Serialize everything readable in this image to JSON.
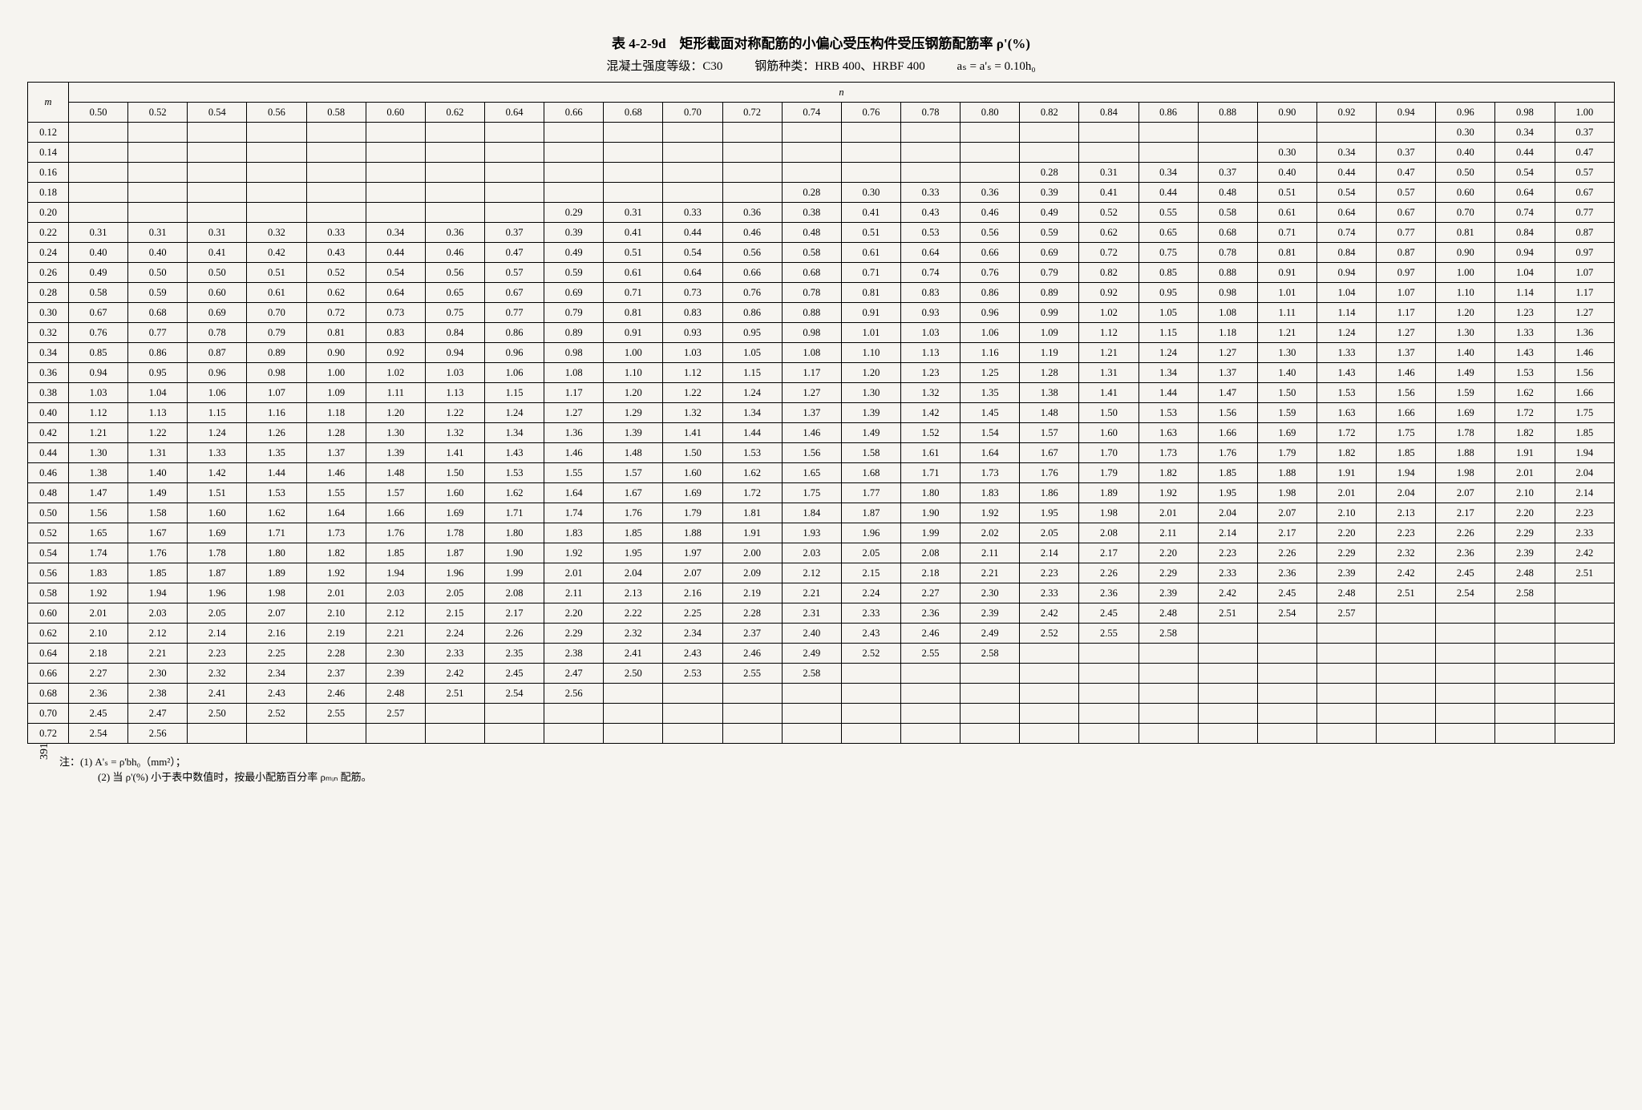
{
  "title": "表 4-2-9d　矩形截面对称配筋的小偏心受压构件受压钢筋配筋率 ρ'(%)",
  "sub_left": "混凝土强度等级：C30",
  "sub_mid": "钢筋种类：HRB 400、HRBF 400",
  "sub_right": "aₛ = a'ₛ = 0.10h₀",
  "m_label": "m",
  "n_label": "n",
  "n_headers": [
    "0.50",
    "0.52",
    "0.54",
    "0.56",
    "0.58",
    "0.60",
    "0.62",
    "0.64",
    "0.66",
    "0.68",
    "0.70",
    "0.72",
    "0.74",
    "0.76",
    "0.78",
    "0.80",
    "0.82",
    "0.84",
    "0.86",
    "0.88",
    "0.90",
    "0.92",
    "0.94",
    "0.96",
    "0.98",
    "1.00"
  ],
  "rows": [
    {
      "m": "0.12",
      "v": [
        "",
        "",
        "",
        "",
        "",
        "",
        "",
        "",
        "",
        "",
        "",
        "",
        "",
        "",
        "",
        "",
        "",
        "",
        "",
        "",
        "",
        "",
        "",
        "0.30",
        "0.34",
        "0.37"
      ]
    },
    {
      "m": "0.14",
      "v": [
        "",
        "",
        "",
        "",
        "",
        "",
        "",
        "",
        "",
        "",
        "",
        "",
        "",
        "",
        "",
        "",
        "",
        "",
        "",
        "",
        "0.30",
        "0.34",
        "0.37",
        "0.40",
        "0.44",
        "0.47"
      ]
    },
    {
      "m": "0.16",
      "v": [
        "",
        "",
        "",
        "",
        "",
        "",
        "",
        "",
        "",
        "",
        "",
        "",
        "",
        "",
        "",
        "",
        "0.28",
        "0.31",
        "0.34",
        "0.37",
        "0.40",
        "0.44",
        "0.47",
        "0.50",
        "0.54",
        "0.57"
      ]
    },
    {
      "m": "0.18",
      "v": [
        "",
        "",
        "",
        "",
        "",
        "",
        "",
        "",
        "",
        "",
        "",
        "",
        "0.28",
        "0.30",
        "0.33",
        "0.36",
        "0.39",
        "0.41",
        "0.44",
        "0.48",
        "0.51",
        "0.54",
        "0.57",
        "0.60",
        "0.64",
        "0.67"
      ]
    },
    {
      "m": "0.20",
      "v": [
        "",
        "",
        "",
        "",
        "",
        "",
        "",
        "",
        "0.29",
        "0.31",
        "0.33",
        "0.36",
        "0.38",
        "0.41",
        "0.43",
        "0.46",
        "0.49",
        "0.52",
        "0.55",
        "0.58",
        "0.61",
        "0.64",
        "0.67",
        "0.70",
        "0.74",
        "0.77"
      ]
    },
    {
      "m": "0.22",
      "v": [
        "0.31",
        "0.31",
        "0.31",
        "0.32",
        "0.33",
        "0.34",
        "0.36",
        "0.37",
        "0.39",
        "0.41",
        "0.44",
        "0.46",
        "0.48",
        "0.51",
        "0.53",
        "0.56",
        "0.59",
        "0.62",
        "0.65",
        "0.68",
        "0.71",
        "0.74",
        "0.77",
        "0.81",
        "0.84",
        "0.87"
      ]
    },
    {
      "m": "0.24",
      "v": [
        "0.40",
        "0.40",
        "0.41",
        "0.42",
        "0.43",
        "0.44",
        "0.46",
        "0.47",
        "0.49",
        "0.51",
        "0.54",
        "0.56",
        "0.58",
        "0.61",
        "0.64",
        "0.66",
        "0.69",
        "0.72",
        "0.75",
        "0.78",
        "0.81",
        "0.84",
        "0.87",
        "0.90",
        "0.94",
        "0.97"
      ]
    },
    {
      "m": "0.26",
      "v": [
        "0.49",
        "0.50",
        "0.50",
        "0.51",
        "0.52",
        "0.54",
        "0.56",
        "0.57",
        "0.59",
        "0.61",
        "0.64",
        "0.66",
        "0.68",
        "0.71",
        "0.74",
        "0.76",
        "0.79",
        "0.82",
        "0.85",
        "0.88",
        "0.91",
        "0.94",
        "0.97",
        "1.00",
        "1.04",
        "1.07"
      ]
    },
    {
      "m": "0.28",
      "v": [
        "0.58",
        "0.59",
        "0.60",
        "0.61",
        "0.62",
        "0.64",
        "0.65",
        "0.67",
        "0.69",
        "0.71",
        "0.73",
        "0.76",
        "0.78",
        "0.81",
        "0.83",
        "0.86",
        "0.89",
        "0.92",
        "0.95",
        "0.98",
        "1.01",
        "1.04",
        "1.07",
        "1.10",
        "1.14",
        "1.17"
      ]
    },
    {
      "m": "0.30",
      "v": [
        "0.67",
        "0.68",
        "0.69",
        "0.70",
        "0.72",
        "0.73",
        "0.75",
        "0.77",
        "0.79",
        "0.81",
        "0.83",
        "0.86",
        "0.88",
        "0.91",
        "0.93",
        "0.96",
        "0.99",
        "1.02",
        "1.05",
        "1.08",
        "1.11",
        "1.14",
        "1.17",
        "1.20",
        "1.23",
        "1.27"
      ]
    },
    {
      "m": "0.32",
      "v": [
        "0.76",
        "0.77",
        "0.78",
        "0.79",
        "0.81",
        "0.83",
        "0.84",
        "0.86",
        "0.89",
        "0.91",
        "0.93",
        "0.95",
        "0.98",
        "1.01",
        "1.03",
        "1.06",
        "1.09",
        "1.12",
        "1.15",
        "1.18",
        "1.21",
        "1.24",
        "1.27",
        "1.30",
        "1.33",
        "1.36"
      ]
    },
    {
      "m": "0.34",
      "v": [
        "0.85",
        "0.86",
        "0.87",
        "0.89",
        "0.90",
        "0.92",
        "0.94",
        "0.96",
        "0.98",
        "1.00",
        "1.03",
        "1.05",
        "1.08",
        "1.10",
        "1.13",
        "1.16",
        "1.19",
        "1.21",
        "1.24",
        "1.27",
        "1.30",
        "1.33",
        "1.37",
        "1.40",
        "1.43",
        "1.46"
      ]
    },
    {
      "m": "0.36",
      "v": [
        "0.94",
        "0.95",
        "0.96",
        "0.98",
        "1.00",
        "1.02",
        "1.03",
        "1.06",
        "1.08",
        "1.10",
        "1.12",
        "1.15",
        "1.17",
        "1.20",
        "1.23",
        "1.25",
        "1.28",
        "1.31",
        "1.34",
        "1.37",
        "1.40",
        "1.43",
        "1.46",
        "1.49",
        "1.53",
        "1.56"
      ]
    },
    {
      "m": "0.38",
      "v": [
        "1.03",
        "1.04",
        "1.06",
        "1.07",
        "1.09",
        "1.11",
        "1.13",
        "1.15",
        "1.17",
        "1.20",
        "1.22",
        "1.24",
        "1.27",
        "1.30",
        "1.32",
        "1.35",
        "1.38",
        "1.41",
        "1.44",
        "1.47",
        "1.50",
        "1.53",
        "1.56",
        "1.59",
        "1.62",
        "1.66"
      ]
    },
    {
      "m": "0.40",
      "v": [
        "1.12",
        "1.13",
        "1.15",
        "1.16",
        "1.18",
        "1.20",
        "1.22",
        "1.24",
        "1.27",
        "1.29",
        "1.32",
        "1.34",
        "1.37",
        "1.39",
        "1.42",
        "1.45",
        "1.48",
        "1.50",
        "1.53",
        "1.56",
        "1.59",
        "1.63",
        "1.66",
        "1.69",
        "1.72",
        "1.75"
      ]
    },
    {
      "m": "0.42",
      "v": [
        "1.21",
        "1.22",
        "1.24",
        "1.26",
        "1.28",
        "1.30",
        "1.32",
        "1.34",
        "1.36",
        "1.39",
        "1.41",
        "1.44",
        "1.46",
        "1.49",
        "1.52",
        "1.54",
        "1.57",
        "1.60",
        "1.63",
        "1.66",
        "1.69",
        "1.72",
        "1.75",
        "1.78",
        "1.82",
        "1.85"
      ]
    },
    {
      "m": "0.44",
      "v": [
        "1.30",
        "1.31",
        "1.33",
        "1.35",
        "1.37",
        "1.39",
        "1.41",
        "1.43",
        "1.46",
        "1.48",
        "1.50",
        "1.53",
        "1.56",
        "1.58",
        "1.61",
        "1.64",
        "1.67",
        "1.70",
        "1.73",
        "1.76",
        "1.79",
        "1.82",
        "1.85",
        "1.88",
        "1.91",
        "1.94"
      ]
    },
    {
      "m": "0.46",
      "v": [
        "1.38",
        "1.40",
        "1.42",
        "1.44",
        "1.46",
        "1.48",
        "1.50",
        "1.53",
        "1.55",
        "1.57",
        "1.60",
        "1.62",
        "1.65",
        "1.68",
        "1.71",
        "1.73",
        "1.76",
        "1.79",
        "1.82",
        "1.85",
        "1.88",
        "1.91",
        "1.94",
        "1.98",
        "2.01",
        "2.04"
      ]
    },
    {
      "m": "0.48",
      "v": [
        "1.47",
        "1.49",
        "1.51",
        "1.53",
        "1.55",
        "1.57",
        "1.60",
        "1.62",
        "1.64",
        "1.67",
        "1.69",
        "1.72",
        "1.75",
        "1.77",
        "1.80",
        "1.83",
        "1.86",
        "1.89",
        "1.92",
        "1.95",
        "1.98",
        "2.01",
        "2.04",
        "2.07",
        "2.10",
        "2.14"
      ]
    },
    {
      "m": "0.50",
      "v": [
        "1.56",
        "1.58",
        "1.60",
        "1.62",
        "1.64",
        "1.66",
        "1.69",
        "1.71",
        "1.74",
        "1.76",
        "1.79",
        "1.81",
        "1.84",
        "1.87",
        "1.90",
        "1.92",
        "1.95",
        "1.98",
        "2.01",
        "2.04",
        "2.07",
        "2.10",
        "2.13",
        "2.17",
        "2.20",
        "2.23"
      ]
    },
    {
      "m": "0.52",
      "v": [
        "1.65",
        "1.67",
        "1.69",
        "1.71",
        "1.73",
        "1.76",
        "1.78",
        "1.80",
        "1.83",
        "1.85",
        "1.88",
        "1.91",
        "1.93",
        "1.96",
        "1.99",
        "2.02",
        "2.05",
        "2.08",
        "2.11",
        "2.14",
        "2.17",
        "2.20",
        "2.23",
        "2.26",
        "2.29",
        "2.33"
      ]
    },
    {
      "m": "0.54",
      "v": [
        "1.74",
        "1.76",
        "1.78",
        "1.80",
        "1.82",
        "1.85",
        "1.87",
        "1.90",
        "1.92",
        "1.95",
        "1.97",
        "2.00",
        "2.03",
        "2.05",
        "2.08",
        "2.11",
        "2.14",
        "2.17",
        "2.20",
        "2.23",
        "2.26",
        "2.29",
        "2.32",
        "2.36",
        "2.39",
        "2.42"
      ]
    },
    {
      "m": "0.56",
      "v": [
        "1.83",
        "1.85",
        "1.87",
        "1.89",
        "1.92",
        "1.94",
        "1.96",
        "1.99",
        "2.01",
        "2.04",
        "2.07",
        "2.09",
        "2.12",
        "2.15",
        "2.18",
        "2.21",
        "2.23",
        "2.26",
        "2.29",
        "2.33",
        "2.36",
        "2.39",
        "2.42",
        "2.45",
        "2.48",
        "2.51"
      ]
    },
    {
      "m": "0.58",
      "v": [
        "1.92",
        "1.94",
        "1.96",
        "1.98",
        "2.01",
        "2.03",
        "2.05",
        "2.08",
        "2.11",
        "2.13",
        "2.16",
        "2.19",
        "2.21",
        "2.24",
        "2.27",
        "2.30",
        "2.33",
        "2.36",
        "2.39",
        "2.42",
        "2.45",
        "2.48",
        "2.51",
        "2.54",
        "2.58",
        ""
      ]
    },
    {
      "m": "0.60",
      "v": [
        "2.01",
        "2.03",
        "2.05",
        "2.07",
        "2.10",
        "2.12",
        "2.15",
        "2.17",
        "2.20",
        "2.22",
        "2.25",
        "2.28",
        "2.31",
        "2.33",
        "2.36",
        "2.39",
        "2.42",
        "2.45",
        "2.48",
        "2.51",
        "2.54",
        "2.57",
        "",
        "",
        "",
        ""
      ]
    },
    {
      "m": "0.62",
      "v": [
        "2.10",
        "2.12",
        "2.14",
        "2.16",
        "2.19",
        "2.21",
        "2.24",
        "2.26",
        "2.29",
        "2.32",
        "2.34",
        "2.37",
        "2.40",
        "2.43",
        "2.46",
        "2.49",
        "2.52",
        "2.55",
        "2.58",
        "",
        "",
        "",
        "",
        "",
        "",
        ""
      ]
    },
    {
      "m": "0.64",
      "v": [
        "2.18",
        "2.21",
        "2.23",
        "2.25",
        "2.28",
        "2.30",
        "2.33",
        "2.35",
        "2.38",
        "2.41",
        "2.43",
        "2.46",
        "2.49",
        "2.52",
        "2.55",
        "2.58",
        "",
        "",
        "",
        "",
        "",
        "",
        "",
        "",
        "",
        ""
      ]
    },
    {
      "m": "0.66",
      "v": [
        "2.27",
        "2.30",
        "2.32",
        "2.34",
        "2.37",
        "2.39",
        "2.42",
        "2.45",
        "2.47",
        "2.50",
        "2.53",
        "2.55",
        "2.58",
        "",
        "",
        "",
        "",
        "",
        "",
        "",
        "",
        "",
        "",
        "",
        "",
        ""
      ]
    },
    {
      "m": "0.68",
      "v": [
        "2.36",
        "2.38",
        "2.41",
        "2.43",
        "2.46",
        "2.48",
        "2.51",
        "2.54",
        "2.56",
        "",
        "",
        "",
        "",
        "",
        "",
        "",
        "",
        "",
        "",
        "",
        "",
        "",
        "",
        "",
        "",
        ""
      ]
    },
    {
      "m": "0.70",
      "v": [
        "2.45",
        "2.47",
        "2.50",
        "2.52",
        "2.55",
        "2.57",
        "",
        "",
        "",
        "",
        "",
        "",
        "",
        "",
        "",
        "",
        "",
        "",
        "",
        "",
        "",
        "",
        "",
        "",
        "",
        ""
      ]
    },
    {
      "m": "0.72",
      "v": [
        "2.54",
        "2.56",
        "",
        "",
        "",
        "",
        "",
        "",
        "",
        "",
        "",
        "",
        "",
        "",
        "",
        "",
        "",
        "",
        "",
        "",
        "",
        "",
        "",
        "",
        "",
        ""
      ]
    }
  ],
  "note1_label": "注：(1)",
  "note1": "A'ₛ = ρ'bh₀（mm²）；",
  "note2_label": "(2)",
  "note2": "当 ρ'(%) 小于表中数值时，按最小配筋百分率 ρₘᵢₙ 配筋。",
  "page_num": "391"
}
